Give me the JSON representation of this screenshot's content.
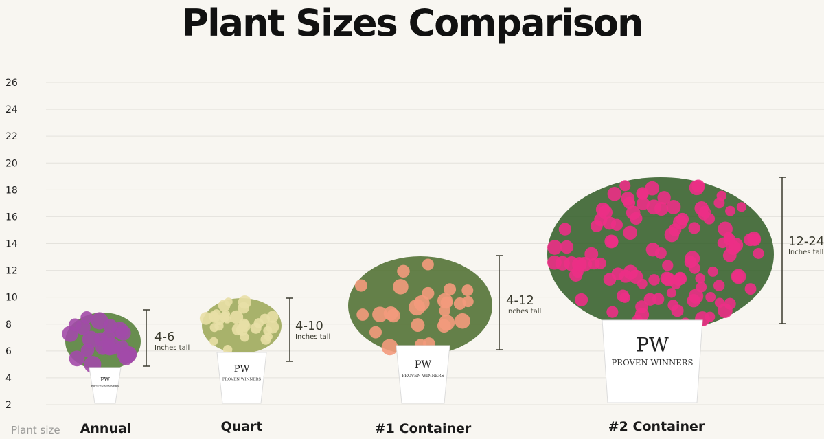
{
  "title": "Plant Sizes Comparison",
  "x_axis_label": "Plant size",
  "unit_label": "Inches tall",
  "colors": {
    "background": "#f8f6f1",
    "grid": "#e4e2dc",
    "bracket": "#3a3a2e",
    "pot": "#ffffff"
  },
  "chart_data": {
    "type": "range",
    "title": "Plant Sizes Comparison",
    "xlabel": "Plant size",
    "ylabel": "",
    "ylim": [
      2,
      26
    ],
    "yticks": [
      26,
      24,
      22,
      20,
      18,
      16,
      14,
      12,
      10,
      8,
      6,
      4,
      2
    ],
    "grid": true,
    "categories": [
      "Annual",
      "Quart",
      "#1 Container",
      "#2 Container"
    ],
    "series": [
      {
        "label": "4-6",
        "min": 4,
        "max": 6,
        "icon": "petunia-in-pot"
      },
      {
        "label": "4-10",
        "min": 4,
        "max": 10,
        "icon": "variegated-shrub-in-pot"
      },
      {
        "label": "4-12",
        "min": 4,
        "max": 12,
        "icon": "peach-rose-in-pot"
      },
      {
        "label": "12-24",
        "min": 12,
        "max": 24,
        "icon": "pink-weigela-in-pot"
      }
    ]
  },
  "pot_brand": "PROVEN WINNERS"
}
